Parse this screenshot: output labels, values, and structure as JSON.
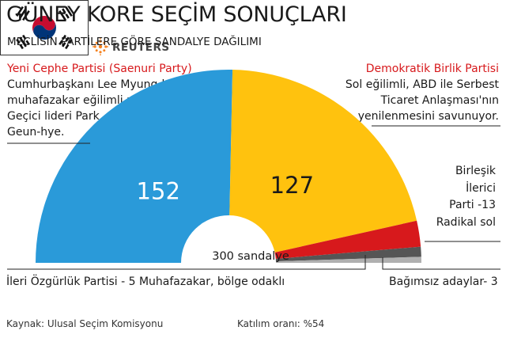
{
  "header": {
    "title": "GÜNEY KORE SEÇİM SONUÇLARI",
    "subtitle": "MECLİSİN PARTİLERE GÖRE SANDALYE DAĞILIMI"
  },
  "notes": {
    "left_party": "Yeni Cephe Partisi (Saenuri Party)",
    "left_desc": [
      "Cumhurbaşkanı Lee Myung-bak'ın",
      "muhafazakar eğilimli partisi.",
      "Geçici lideri Park",
      "Geun-hye."
    ],
    "right_party": "Demokratik Birlik Partisi",
    "right_desc": [
      "Sol eğilimli, ABD ile Serbest",
      "Ticaret Anlaşması'nın",
      "yenilenmesini savunuyor."
    ],
    "minor_party": [
      "Birleşik",
      "İlerici",
      "Parti -13",
      "Radikal sol"
    ]
  },
  "footer": {
    "bottom_left": "İleri Özgürlük Partisi - 5 Muhafazakar, bölge odaklı",
    "bottom_right": "Bağımsız adaylar- 3",
    "source": "Kaynak: Ulusal Seçim Komisyonu",
    "turnout": "Katılım oranı: %54",
    "logo_text": "REUTERS"
  },
  "colors": {
    "saenuri": "#2a9ad9",
    "democratic": "#ffc20e",
    "unified_progressive": "#d7191c",
    "liberty_forward": "#555555",
    "independents": "#b0b0b0",
    "accent_red": "#d7191c",
    "reuters_orange": "#f58220"
  },
  "chart_data": {
    "type": "pie",
    "subtype": "semicircle parliament",
    "total_label": "300 sandalye",
    "total": 300,
    "categories": [
      "Yeni Cephe Partisi (Saenuri Party)",
      "Demokratik Birlik Partisi",
      "Birleşik İlerici Parti",
      "İleri Özgürlük Partisi",
      "Bağımsız adaylar"
    ],
    "values": [
      152,
      127,
      13,
      5,
      3
    ],
    "labels": [
      "152",
      "127",
      "",
      "",
      ""
    ]
  }
}
